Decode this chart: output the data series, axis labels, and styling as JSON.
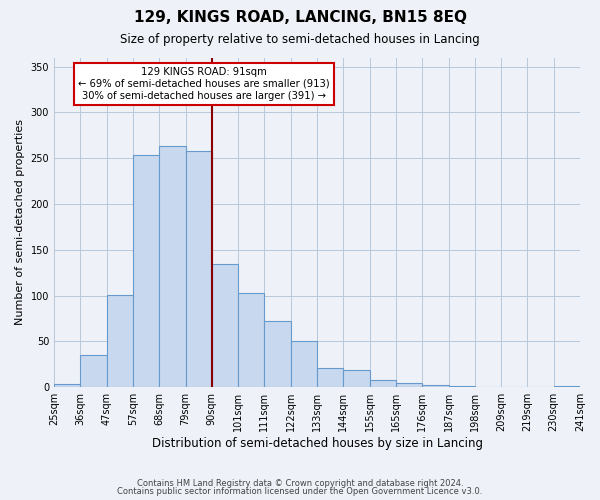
{
  "title": "129, KINGS ROAD, LANCING, BN15 8EQ",
  "subtitle": "Size of property relative to semi-detached houses in Lancing",
  "xlabel": "Distribution of semi-detached houses by size in Lancing",
  "ylabel": "Number of semi-detached properties",
  "bin_labels": [
    "25sqm",
    "36sqm",
    "47sqm",
    "57sqm",
    "68sqm",
    "79sqm",
    "90sqm",
    "101sqm",
    "111sqm",
    "122sqm",
    "133sqm",
    "144sqm",
    "155sqm",
    "165sqm",
    "176sqm",
    "187sqm",
    "198sqm",
    "209sqm",
    "219sqm",
    "230sqm",
    "241sqm"
  ],
  "bar_heights": [
    4,
    35,
    101,
    253,
    263,
    258,
    135,
    103,
    72,
    50,
    21,
    19,
    8,
    5,
    2,
    1,
    0,
    0,
    0,
    1
  ],
  "bar_color": "#c8d9ef",
  "bar_edge_color": "#6699cc",
  "property_line_bin_index": 6,
  "annotation_title": "129 KINGS ROAD: 91sqm",
  "annotation_line1": "← 69% of semi-detached houses are smaller (913)",
  "annotation_line2": "30% of semi-detached houses are larger (391) →",
  "annotation_box_color": "#ffffff",
  "annotation_border_color": "#cc0000",
  "vline_color": "#8b0000",
  "ylim": [
    0,
    360
  ],
  "yticks": [
    0,
    50,
    100,
    150,
    200,
    250,
    300,
    350
  ],
  "footer_line1": "Contains HM Land Registry data © Crown copyright and database right 2024.",
  "footer_line2": "Contains public sector information licensed under the Open Government Licence v3.0.",
  "bg_color": "#eef2f8"
}
